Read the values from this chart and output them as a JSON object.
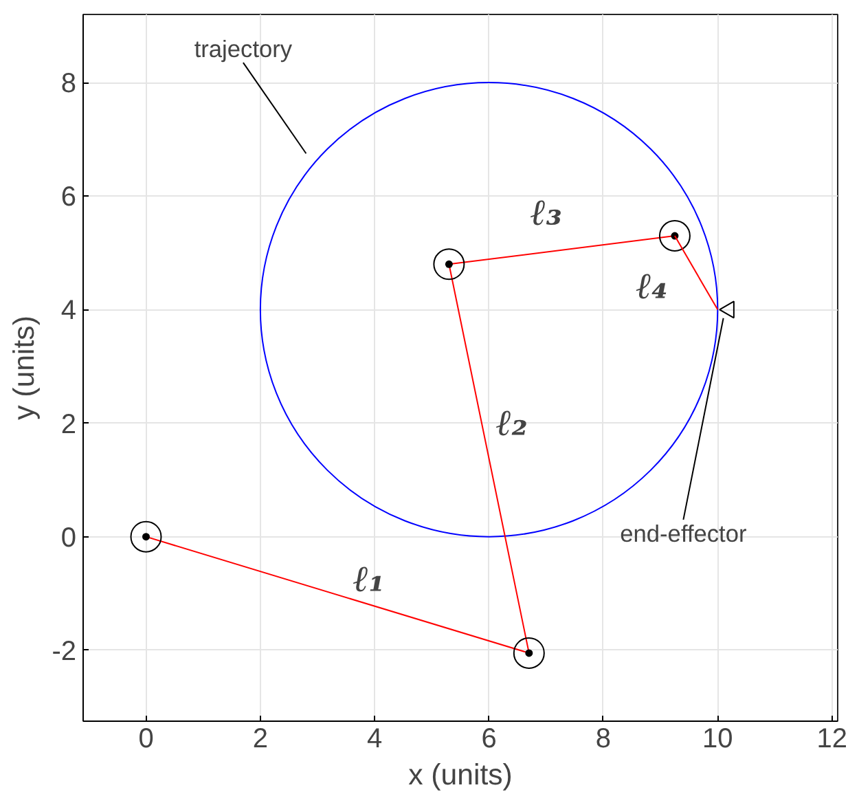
{
  "chart_data": {
    "type": "line",
    "xlabel": "x (units)",
    "ylabel": "y (units)",
    "xlim": [
      -1.1,
      12.1
    ],
    "ylim": [
      -3.25,
      9.2
    ],
    "xticks": [
      0,
      2,
      4,
      6,
      8,
      10,
      12
    ],
    "yticks": [
      -2,
      0,
      2,
      4,
      6,
      8
    ],
    "grid": true,
    "series": [
      {
        "color": "#ff0000",
        "marker": "circle",
        "x": [
          0,
          6.7,
          5.3,
          9.25
        ],
        "values": [
          0,
          -2.05,
          4.8,
          5.3
        ]
      },
      {
        "color": "#ff0000",
        "x": [
          9.25,
          10
        ],
        "values": [
          5.3,
          4
        ]
      },
      {
        "type": "scatter",
        "color": "#000000",
        "marker": "triangle",
        "x": [
          10.2
        ],
        "values": [
          4
        ]
      }
    ],
    "annotations": [
      "trajectory",
      {
        "text": "end-effector",
        "x": 10.2,
        "y": 4
      },
      "ℓ₁",
      "ℓ₂",
      "ℓ₃",
      "ℓ₄"
    ]
  }
}
